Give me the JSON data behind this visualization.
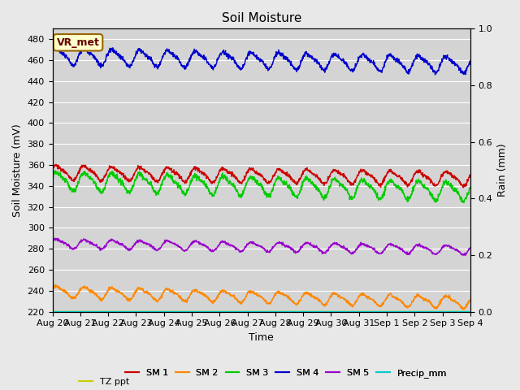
{
  "title": "Soil Moisture",
  "xlabel": "Time",
  "ylabel_left": "Soil Moisture (mV)",
  "ylabel_right": "Rain (mm)",
  "ylim_left": [
    220,
    490
  ],
  "ylim_right": [
    0.0,
    1.0
  ],
  "yticks_left": [
    220,
    240,
    260,
    280,
    300,
    320,
    340,
    360,
    380,
    400,
    420,
    440,
    460,
    480
  ],
  "yticks_right": [
    0.0,
    0.2,
    0.4,
    0.6,
    0.8,
    1.0
  ],
  "xtick_labels": [
    "Aug 20",
    "Aug 21",
    "Aug 22",
    "Aug 23",
    "Aug 24",
    "Aug 25",
    "Aug 26",
    "Aug 27",
    "Aug 28",
    "Aug 29",
    "Aug 30",
    "Aug 31",
    "Sep 1",
    "Sep 2",
    "Sep 3",
    "Sep 4"
  ],
  "n_points": 1600,
  "series": {
    "SM1": {
      "color": "#cc0000",
      "base": 353,
      "amplitude": 6,
      "trend": -6,
      "cycles_per_day": 1.0
    },
    "SM2": {
      "color": "#ff8800",
      "base": 239,
      "amplitude": 5,
      "trend": -10,
      "cycles_per_day": 1.0
    },
    "SM3": {
      "color": "#00cc00",
      "base": 345,
      "amplitude": 8,
      "trend": -10,
      "cycles_per_day": 1.0
    },
    "SM4": {
      "color": "#0000cc",
      "base": 464,
      "amplitude": 7,
      "trend": -8,
      "cycles_per_day": 1.0
    },
    "SM5": {
      "color": "#9900cc",
      "base": 285,
      "amplitude": 4,
      "trend": -6,
      "cycles_per_day": 1.0
    },
    "Precip_mm": {
      "color": "#00cccc",
      "base": 0,
      "amplitude": 0,
      "trend": 0,
      "cycles_per_day": 0
    },
    "TZ_ppt": {
      "color": "#cccc00",
      "base": 220,
      "amplitude": 0,
      "trend": 0,
      "cycles_per_day": 0
    }
  },
  "legend_row1": [
    {
      "label": "SM 1",
      "color": "#cc0000"
    },
    {
      "label": "SM 2",
      "color": "#ff8800"
    },
    {
      "label": "SM 3",
      "color": "#00cc00"
    },
    {
      "label": "SM 4",
      "color": "#0000cc"
    },
    {
      "label": "SM 5",
      "color": "#9900cc"
    },
    {
      "label": "Precip_mm",
      "color": "#00cccc"
    }
  ],
  "legend_row2": [
    {
      "label": "TZ ppt",
      "color": "#cccc00"
    }
  ],
  "vr_met_box": {
    "text": "VR_met",
    "facecolor": "#ffffcc",
    "edgecolor": "#996600",
    "text_color": "#660000"
  },
  "bg_color": "#e8e8e8",
  "plot_bg_color": "#d4d4d4",
  "grid_color": "#ffffff",
  "days": 15
}
